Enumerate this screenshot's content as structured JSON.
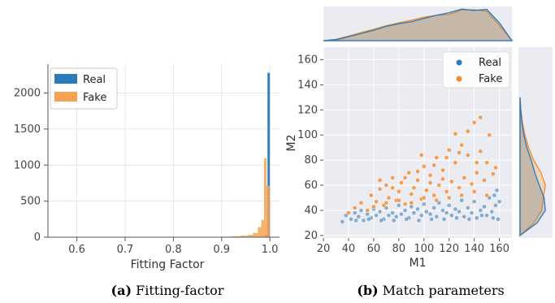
{
  "chart_data": [
    {
      "type": "bar",
      "subtype": "overlaid-histogram",
      "panel": "(a)",
      "caption_label": "(a)",
      "caption_text": "Fitting-factor",
      "xlabel": "Fitting Factor",
      "ylabel": "",
      "xlim": [
        0.54,
        1.02
      ],
      "ylim": [
        0,
        2400
      ],
      "xticks": [
        "0.6",
        "0.7",
        "0.8",
        "0.9",
        "1.0"
      ],
      "yticks": [
        "0",
        "500",
        "1000",
        "1500",
        "2000"
      ],
      "grid": true,
      "legend_placement": "top-left",
      "colors": {
        "Real": "#2b7bba",
        "Fake": "#f4a354"
      },
      "series": [
        {
          "name": "Real",
          "color": "#2b7bba",
          "bins": [
            [
              0.98,
              0.985,
              2
            ],
            [
              0.985,
              0.99,
              6
            ],
            [
              0.99,
              0.995,
              30
            ],
            [
              0.995,
              1.0,
              2280
            ]
          ]
        },
        {
          "name": "Fake",
          "color": "#f4a354",
          "bins": [
            [
              0.9,
              0.92,
              8
            ],
            [
              0.92,
              0.94,
              14
            ],
            [
              0.94,
              0.955,
              22
            ],
            [
              0.955,
              0.965,
              32
            ],
            [
              0.965,
              0.975,
              60
            ],
            [
              0.975,
              0.982,
              140
            ],
            [
              0.982,
              0.988,
              240
            ],
            [
              0.988,
              0.993,
              1095
            ],
            [
              0.993,
              1.0,
              715
            ]
          ]
        }
      ]
    },
    {
      "type": "scatter",
      "subtype": "joint-plot-with-kde-marginals",
      "panel": "(b)",
      "caption_label": "(b)",
      "caption_text": "Match parameters",
      "xlabel": "M1",
      "ylabel": "M2",
      "xlim": [
        20,
        170
      ],
      "ylim": [
        18,
        170
      ],
      "xticks": [
        "20",
        "40",
        "60",
        "80",
        "100",
        "120",
        "140",
        "160"
      ],
      "yticks": [
        "20",
        "40",
        "60",
        "80",
        "100",
        "120",
        "140",
        "160"
      ],
      "grid": true,
      "legend_placement": "top-right",
      "series": [
        {
          "name": "Real",
          "color": "#2b7bba",
          "marker": "dot",
          "points": [
            [
              35,
              31
            ],
            [
              38,
              36
            ],
            [
              42,
              33
            ],
            [
              45,
              38
            ],
            [
              48,
              35
            ],
            [
              50,
              40
            ],
            [
              52,
              32
            ],
            [
              55,
              37
            ],
            [
              58,
              34
            ],
            [
              60,
              41
            ],
            [
              62,
              36
            ],
            [
              65,
              39
            ],
            [
              68,
              33
            ],
            [
              70,
              42
            ],
            [
              72,
              36
            ],
            [
              75,
              38
            ],
            [
              78,
              35
            ],
            [
              80,
              44
            ],
            [
              82,
              37
            ],
            [
              85,
              40
            ],
            [
              88,
              34
            ],
            [
              90,
              43
            ],
            [
              92,
              38
            ],
            [
              95,
              41
            ],
            [
              98,
              36
            ],
            [
              100,
              45
            ],
            [
              102,
              39
            ],
            [
              105,
              37
            ],
            [
              108,
              42
            ],
            [
              110,
              35
            ],
            [
              112,
              46
            ],
            [
              115,
              40
            ],
            [
              118,
              38
            ],
            [
              120,
              44
            ],
            [
              122,
              36
            ],
            [
              125,
              41
            ],
            [
              128,
              39
            ],
            [
              130,
              48
            ],
            [
              132,
              35
            ],
            [
              135,
              42
            ],
            [
              138,
              38
            ],
            [
              140,
              47
            ],
            [
              142,
              34
            ],
            [
              145,
              40
            ],
            [
              148,
              43
            ],
            [
              150,
              36
            ],
            [
              152,
              50
            ],
            [
              154,
              39
            ],
            [
              155,
              34
            ],
            [
              157,
              44
            ],
            [
              158,
              56
            ],
            [
              159,
              33
            ],
            [
              160,
              47
            ],
            [
              156,
              52
            ],
            [
              146,
              36
            ],
            [
              136,
              33
            ],
            [
              126,
              34
            ],
            [
              116,
              33
            ],
            [
              106,
              33
            ],
            [
              96,
              32
            ],
            [
              86,
              33
            ],
            [
              76,
              32
            ],
            [
              66,
              32
            ],
            [
              56,
              33
            ],
            [
              46,
              32
            ]
          ]
        },
        {
          "name": "Fake",
          "color": "#f28b2c",
          "marker": "dot",
          "points": [
            [
              40,
              38
            ],
            [
              45,
              42
            ],
            [
              50,
              46
            ],
            [
              55,
              40
            ],
            [
              58,
              52
            ],
            [
              62,
              47
            ],
            [
              65,
              57
            ],
            [
              68,
              44
            ],
            [
              70,
              60
            ],
            [
              72,
              50
            ],
            [
              75,
              66
            ],
            [
              78,
              48
            ],
            [
              80,
              55
            ],
            [
              82,
              62
            ],
            [
              85,
              45
            ],
            [
              88,
              70
            ],
            [
              90,
              53
            ],
            [
              92,
              58
            ],
            [
              95,
              64
            ],
            [
              98,
              49
            ],
            [
              100,
              75
            ],
            [
              102,
              56
            ],
            [
              105,
              68
            ],
            [
              108,
              52
            ],
            [
              110,
              82
            ],
            [
              112,
              60
            ],
            [
              115,
              72
            ],
            [
              118,
              55
            ],
            [
              120,
              88
            ],
            [
              122,
              63
            ],
            [
              125,
              78
            ],
            [
              128,
              58
            ],
            [
              130,
              92
            ],
            [
              132,
              66
            ],
            [
              135,
              84
            ],
            [
              138,
              61
            ],
            [
              140,
              110
            ],
            [
              142,
              70
            ],
            [
              145,
              87
            ],
            [
              148,
              64
            ],
            [
              150,
              78
            ],
            [
              152,
              100
            ],
            [
              155,
              69
            ],
            [
              157,
              74
            ],
            [
              60,
              43
            ],
            [
              70,
              46
            ],
            [
              80,
              48
            ],
            [
              90,
              46
            ],
            [
              100,
              50
            ],
            [
              110,
              48
            ],
            [
              120,
              50
            ],
            [
              130,
              52
            ],
            [
              140,
              55
            ],
            [
              150,
              52
            ],
            [
              65,
              64
            ],
            [
              75,
              58
            ],
            [
              85,
              66
            ],
            [
              95,
              71
            ],
            [
              105,
              62
            ],
            [
              115,
              65
            ],
            [
              125,
              101
            ],
            [
              135,
              103
            ],
            [
              145,
              114
            ],
            [
              118,
              82
            ],
            [
              128,
              86
            ],
            [
              142,
              78
            ],
            [
              108,
              76
            ],
            [
              98,
              84
            ]
          ]
        }
      ],
      "marginal_top": {
        "name": "M1 density",
        "x": [
          20,
          30,
          40,
          50,
          60,
          70,
          80,
          90,
          100,
          110,
          120,
          130,
          140,
          150,
          160,
          170
        ],
        "real": [
          0.0,
          0.03,
          0.12,
          0.22,
          0.32,
          0.44,
          0.52,
          0.58,
          0.68,
          0.78,
          0.86,
          0.97,
          0.93,
          0.96,
          0.55,
          0.0
        ],
        "fake": [
          0.0,
          0.04,
          0.14,
          0.25,
          0.35,
          0.46,
          0.55,
          0.63,
          0.72,
          0.78,
          0.8,
          0.94,
          0.95,
          0.9,
          0.48,
          0.0
        ]
      },
      "marginal_right": {
        "name": "M2 density",
        "y": [
          20,
          30,
          40,
          50,
          60,
          70,
          80,
          90,
          100,
          110,
          120,
          130
        ],
        "real": [
          0.0,
          0.55,
          0.82,
          0.78,
          0.62,
          0.48,
          0.36,
          0.22,
          0.12,
          0.06,
          0.02,
          0.0
        ],
        "fake": [
          0.0,
          0.45,
          0.7,
          0.75,
          0.82,
          0.68,
          0.44,
          0.28,
          0.16,
          0.08,
          0.03,
          0.0
        ]
      }
    }
  ]
}
